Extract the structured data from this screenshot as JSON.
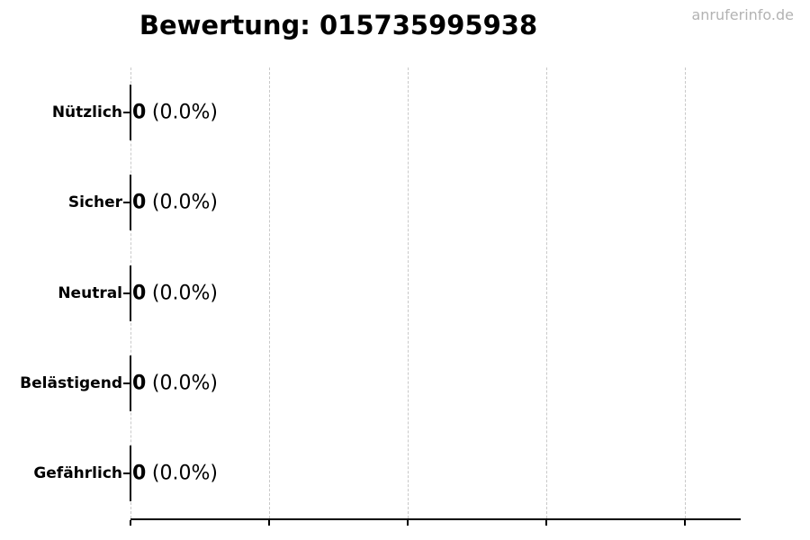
{
  "header": {
    "watermark": "anruferinfo.de"
  },
  "chart_data": {
    "type": "bar",
    "orientation": "horizontal",
    "title": "Bewertung: 015735995938",
    "categories": [
      "Nützlich",
      "Sicher",
      "Neutral",
      "Belästigend",
      "Gefährlich"
    ],
    "values": [
      0,
      0,
      0,
      0,
      0
    ],
    "value_labels": [
      {
        "count": "0",
        "percent": "(0.0%)"
      },
      {
        "count": "0",
        "percent": "(0.0%)"
      },
      {
        "count": "0",
        "percent": "(0.0%)"
      },
      {
        "count": "0",
        "percent": "(0.0%)"
      },
      {
        "count": "0",
        "percent": "(0.0%)"
      }
    ],
    "xlabel": "",
    "ylabel": "",
    "xlim": [
      0,
      4.4
    ],
    "x_tick_labels": [],
    "grid": "vertical dashed gridlines at each x tick",
    "legend_position": "none"
  },
  "colors": {
    "background": "#ffffff",
    "text": "#000000",
    "axis": "#000000",
    "bar": "#000000",
    "gridline": "#c9c9c9",
    "watermark": "#b3b3b3"
  }
}
